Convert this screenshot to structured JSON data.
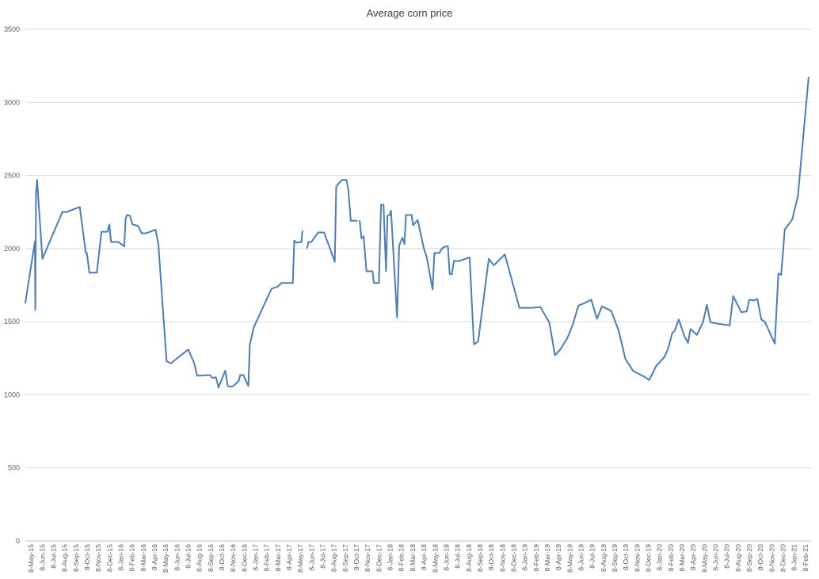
{
  "chart_data": {
    "type": "line",
    "title": "Average corn price",
    "xlabel": "",
    "ylabel": "",
    "ylim": [
      0,
      3500
    ],
    "yticks": [
      0,
      500,
      1000,
      1500,
      2000,
      2500,
      3000,
      3500
    ],
    "grid": true,
    "legend": "none",
    "x_tick_labels": [
      "8-May-15",
      "8-Jun-15",
      "8-Jul-15",
      "8-Aug-15",
      "8-Sep-15",
      "8-Oct-15",
      "8-Nov-15",
      "8-Dec-15",
      "8-Jan-16",
      "8-Feb-16",
      "8-Mar-16",
      "8-Apr-16",
      "8-May-16",
      "8-Jun-16",
      "8-Jul-16",
      "8-Aug-16",
      "8-Sep-16",
      "8-Oct-16",
      "8-Nov-16",
      "8-Dec-16",
      "8-Jan-17",
      "8-Feb-17",
      "8-Mar-17",
      "8-Apr-17",
      "8-May-17",
      "8-Jun-17",
      "8-Jul-17",
      "8-Aug-17",
      "8-Sep-17",
      "8-Oct-17",
      "8-Nov-17",
      "8-Dec-17",
      "8-Jan-18",
      "8-Feb-18",
      "8-Mar-18",
      "8-Apr-18",
      "8-May-18",
      "8-Jun-18",
      "8-Jul-18",
      "8-Aug-18",
      "8-Sep-18",
      "8-Oct-18",
      "8-Nov-18",
      "8-Dec-18",
      "8-Jan-19",
      "8-Feb-19",
      "8-Mar-19",
      "8-Apr-19",
      "8-May-19",
      "8-Jun-19",
      "8-Jul-19",
      "8-Aug-19",
      "8-Sep-19",
      "8-Oct-19",
      "8-Nov-19",
      "8-Dec-19",
      "8-Jan-20",
      "8-Feb-20",
      "8-Mar-20",
      "8-Apr-20",
      "8-May-20",
      "8-Jun-20",
      "8-Jul-20",
      "8-Aug-20",
      "8-Sep-20",
      "8-Oct-20",
      "8-Nov-20",
      "8-Dec-20",
      "8-Jan-21",
      "8-Feb-21"
    ],
    "series": [
      {
        "name": "",
        "color": "#4a7ebb",
        "points": [
          [
            "2015-05-08",
            1630
          ],
          [
            "2015-06-04",
            2050
          ],
          [
            "2015-06-05",
            1580
          ],
          [
            "2015-06-07",
            2380
          ],
          [
            "2015-06-10",
            2470
          ],
          [
            "2015-06-25",
            1930
          ],
          [
            "2015-08-20",
            2250
          ],
          [
            "2015-09-01",
            2250
          ],
          [
            "2015-10-08",
            2285
          ],
          [
            "2015-10-25",
            1970
          ],
          [
            "2015-10-28",
            1970
          ],
          [
            "2015-11-04",
            1835
          ],
          [
            "2015-11-25",
            1835
          ],
          [
            "2015-12-08",
            2115
          ],
          [
            "2015-12-25",
            2115
          ],
          [
            "2015-12-30",
            2165
          ],
          [
            "2016-01-04",
            2045
          ],
          [
            "2016-01-25",
            2045
          ],
          [
            "2016-02-10",
            2015
          ],
          [
            "2016-02-14",
            2205
          ],
          [
            "2016-02-18",
            2230
          ],
          [
            "2016-02-26",
            2225
          ],
          [
            "2016-03-04",
            2165
          ],
          [
            "2016-03-20",
            2155
          ],
          [
            "2016-03-30",
            2105
          ],
          [
            "2016-04-12",
            2105
          ],
          [
            "2016-05-08",
            2130
          ],
          [
            "2016-05-16",
            2030
          ],
          [
            "2016-06-08",
            1230
          ],
          [
            "2016-06-20",
            1215
          ],
          [
            "2016-08-08",
            1310
          ],
          [
            "2016-08-25",
            1215
          ],
          [
            "2016-09-02",
            1130
          ],
          [
            "2016-10-08",
            1135
          ],
          [
            "2016-10-15",
            1115
          ],
          [
            "2016-10-25",
            1120
          ],
          [
            "2016-11-01",
            1050
          ],
          [
            "2016-11-20",
            1165
          ],
          [
            "2016-11-27",
            1060
          ],
          [
            "2016-12-08",
            1055
          ],
          [
            "2016-12-15",
            1065
          ],
          [
            "2016-12-28",
            1095
          ],
          [
            "2017-01-01",
            1135
          ],
          [
            "2017-01-10",
            1135
          ],
          [
            "2017-01-18",
            1090
          ],
          [
            "2017-01-24",
            1060
          ],
          [
            "2017-01-28",
            1340
          ],
          [
            "2017-02-08",
            1460
          ],
          [
            "2017-03-30",
            1725
          ],
          [
            "2017-04-17",
            1740
          ],
          [
            "2017-04-27",
            1765
          ],
          [
            "2017-05-29",
            1765
          ],
          [
            "2017-06-02",
            2055
          ],
          [
            "2017-06-08",
            2040
          ],
          [
            "2017-06-22",
            2045
          ],
          [
            "2017-06-25",
            2120
          ],
          null,
          [
            "2017-07-08",
            2005
          ],
          [
            "2017-07-12",
            2045
          ],
          [
            "2017-07-20",
            2045
          ],
          [
            "2017-08-08",
            2110
          ],
          [
            "2017-08-25",
            2110
          ],
          [
            "2017-09-24",
            1910
          ],
          [
            "2017-09-28",
            2425
          ],
          [
            "2017-10-14",
            2470
          ],
          [
            "2017-10-27",
            2470
          ],
          [
            "2017-11-01",
            2400
          ],
          [
            "2017-11-08",
            2190
          ],
          [
            "2017-11-25",
            2190
          ],
          null,
          [
            "2017-12-03",
            2190
          ],
          [
            "2017-12-08",
            2070
          ],
          [
            "2017-12-14",
            2085
          ],
          [
            "2017-12-22",
            1845
          ],
          [
            "2018-01-08",
            1845
          ],
          [
            "2018-01-12",
            1765
          ],
          [
            "2018-01-26",
            1765
          ],
          [
            "2018-02-01",
            2300
          ],
          [
            "2018-02-08",
            2300
          ],
          [
            "2018-02-15",
            1845
          ],
          [
            "2018-02-19",
            2225
          ],
          [
            "2018-02-25",
            2230
          ],
          [
            "2018-03-01",
            2260
          ],
          [
            "2018-03-18",
            1530
          ],
          [
            "2018-03-24",
            2020
          ],
          [
            "2018-04-02",
            2075
          ],
          [
            "2018-04-08",
            2030
          ],
          [
            "2018-04-12",
            2230
          ],
          [
            "2018-04-28",
            2230
          ],
          [
            "2018-05-02",
            2160
          ],
          [
            "2018-05-15",
            2195
          ],
          [
            "2018-06-01",
            2005
          ],
          [
            "2018-06-10",
            1935
          ],
          [
            "2018-06-26",
            1720
          ],
          [
            "2018-07-01",
            1970
          ],
          [
            "2018-07-15",
            1970
          ],
          [
            "2018-07-22",
            2000
          ],
          [
            "2018-08-01",
            2015
          ],
          [
            "2018-08-08",
            2015
          ],
          [
            "2018-08-13",
            1825
          ],
          [
            "2018-08-19",
            1825
          ],
          [
            "2018-08-25",
            1915
          ],
          [
            "2018-09-08",
            1915
          ],
          [
            "2018-10-08",
            1940
          ],
          [
            "2018-10-20",
            1345
          ],
          [
            "2018-11-01",
            1365
          ],
          [
            "2018-11-15",
            1630
          ],
          [
            "2018-12-01",
            1930
          ],
          [
            "2018-12-15",
            1885
          ],
          [
            "2019-01-15",
            1960
          ],
          [
            "2019-02-25",
            1595
          ],
          [
            "2019-03-30",
            1595
          ],
          [
            "2019-04-25",
            1600
          ],
          [
            "2019-05-20",
            1495
          ],
          [
            "2019-06-05",
            1270
          ],
          [
            "2019-06-20",
            1310
          ],
          [
            "2019-07-10",
            1390
          ],
          [
            "2019-07-25",
            1480
          ],
          [
            "2019-08-10",
            1610
          ],
          [
            "2019-08-25",
            1625
          ],
          [
            "2019-09-15",
            1650
          ],
          [
            "2019-10-01",
            1520
          ],
          [
            "2019-10-15",
            1605
          ],
          [
            "2019-11-10",
            1575
          ],
          [
            "2019-12-01",
            1440
          ],
          [
            "2019-12-20",
            1245
          ],
          [
            "2020-01-10",
            1165
          ],
          [
            "2020-02-10",
            1125
          ],
          [
            "2020-02-25",
            1100
          ],
          [
            "2020-03-15",
            1195
          ],
          [
            "2020-04-08",
            1260
          ],
          [
            "2020-04-18",
            1315
          ],
          [
            "2020-04-30",
            1425
          ],
          [
            "2020-05-06",
            1435
          ],
          [
            "2020-05-18",
            1515
          ],
          [
            "2020-05-25",
            1465
          ],
          [
            "2020-06-03",
            1400
          ],
          [
            "2020-06-13",
            1355
          ],
          [
            "2020-06-20",
            1450
          ],
          [
            "2020-07-08",
            1410
          ],
          [
            "2020-07-25",
            1495
          ],
          [
            "2020-08-05",
            1615
          ],
          [
            "2020-08-15",
            1495
          ],
          [
            "2020-09-08",
            1485
          ],
          [
            "2020-10-08",
            1475
          ],
          [
            "2020-10-18",
            1675
          ],
          [
            "2020-11-10",
            1565
          ],
          [
            "2020-11-25",
            1570
          ],
          [
            "2020-12-02",
            1650
          ],
          [
            "2020-12-15",
            1645
          ],
          [
            "2020-12-25",
            1655
          ],
          [
            "2021-01-05",
            1515
          ],
          [
            "2021-01-15",
            1500
          ],
          [
            "2021-02-12",
            1350
          ],
          [
            "2021-02-22",
            1830
          ],
          [
            "2021-03-02",
            1820
          ],
          [
            "2021-03-12",
            2130
          ],
          [
            "2021-04-02",
            2200
          ],
          [
            "2021-04-18",
            2360
          ],
          [
            "2021-05-18",
            3170
          ]
        ]
      }
    ]
  }
}
